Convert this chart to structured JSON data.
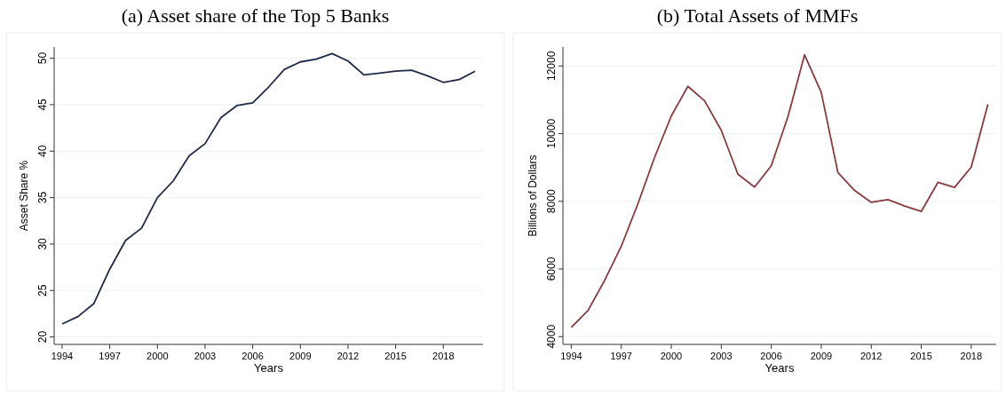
{
  "chart_data": [
    {
      "type": "line",
      "title": "(a) Asset share of the Top 5 Banks",
      "xlabel": "Years",
      "ylabel": "Asset Share %",
      "x": [
        1994,
        1995,
        1996,
        1997,
        1998,
        1999,
        2000,
        2001,
        2002,
        2003,
        2004,
        2005,
        2006,
        2007,
        2008,
        2009,
        2010,
        2011,
        2012,
        2013,
        2014,
        2015,
        2016,
        2017,
        2018,
        2019,
        2020
      ],
      "series": [
        {
          "color": "#1f2a4a",
          "values": [
            21.4,
            22.2,
            23.6,
            27.3,
            30.4,
            31.7,
            35.0,
            36.8,
            39.5,
            40.8,
            43.6,
            44.9,
            45.2,
            46.9,
            48.8,
            49.6,
            49.9,
            50.5,
            49.7,
            48.2,
            48.4,
            48.6,
            48.7,
            48.1,
            47.4,
            47.7,
            48.6
          ]
        }
      ],
      "xlim": [
        1993.5,
        2020.5
      ],
      "xticks": [
        1994,
        1997,
        2000,
        2003,
        2006,
        2009,
        2012,
        2015,
        2018
      ],
      "ylim": [
        19.2,
        51.2
      ],
      "yticks": [
        20,
        25,
        30,
        35,
        40,
        45,
        50
      ],
      "grid": "y",
      "marker": "none",
      "line_style": "solid"
    },
    {
      "type": "line",
      "title": "(b) Total Assets of MMFs",
      "xlabel": "Years",
      "ylabel": "Billions of Dollars",
      "x": [
        1994,
        1995,
        1996,
        1997,
        1998,
        1999,
        2000,
        2001,
        2002,
        2003,
        2004,
        2005,
        2006,
        2007,
        2008,
        2009,
        2010,
        2011,
        2012,
        2013,
        2014,
        2015,
        2016,
        2017,
        2018,
        2019
      ],
      "series": [
        {
          "color": "#8b3a3e",
          "values": [
            4270,
            4770,
            5660,
            6670,
            7930,
            9300,
            10520,
            11400,
            10970,
            10100,
            8800,
            8420,
            9050,
            10500,
            12330,
            11220,
            8850,
            8320,
            7970,
            8050,
            7860,
            7700,
            8560,
            8410,
            9010,
            10870
          ]
        }
      ],
      "xlim": [
        1993.5,
        2019.5
      ],
      "xticks": [
        1994,
        1997,
        2000,
        2003,
        2006,
        2009,
        2012,
        2015,
        2018
      ],
      "ylim": [
        3770,
        12560
      ],
      "yticks": [
        4000,
        6000,
        8000,
        10000,
        12000
      ],
      "grid": "y",
      "marker": "none",
      "line_style": "solid"
    }
  ]
}
